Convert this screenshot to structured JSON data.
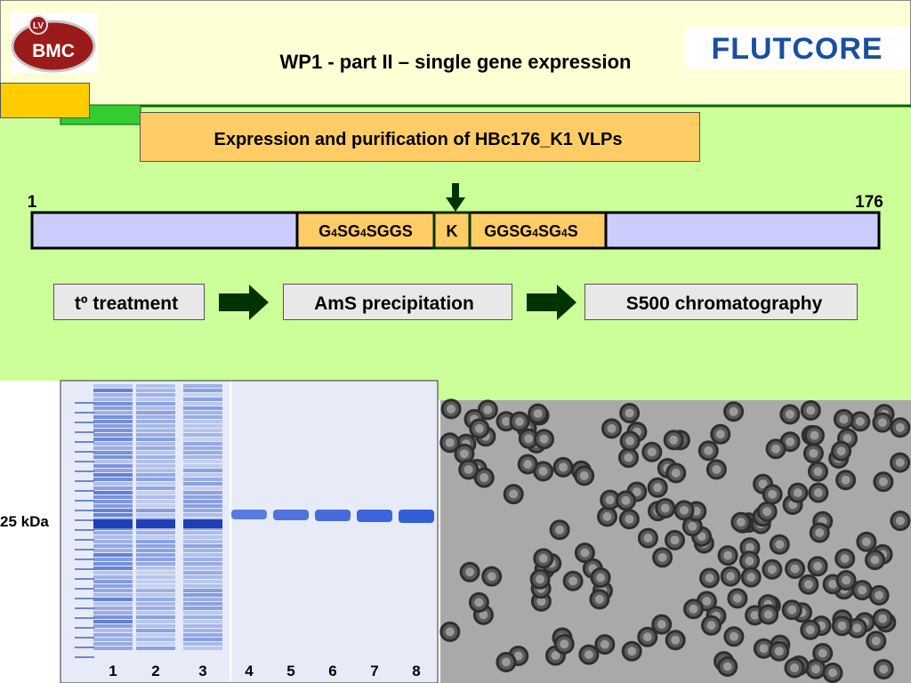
{
  "header": {
    "title": "WP1 - part II – single gene expression",
    "left_logo": {
      "badge": "LV",
      "name": "BMC"
    },
    "right_logo": "FLUTCORE"
  },
  "subtitle": "Expression and purification of HBc176_K1 VLPs",
  "construct": {
    "start": "1",
    "end": "176",
    "linker_left": "G4SG4SGGS",
    "insert": "K",
    "linker_right": "GGSG4SG4S"
  },
  "steps": [
    "tº treatment",
    "AmS precipitation",
    "S500 chromatography"
  ],
  "gel": {
    "marker_label": "25 kDa",
    "lanes": [
      "1",
      "2",
      "3",
      "4",
      "5",
      "6",
      "7",
      "8"
    ]
  }
}
